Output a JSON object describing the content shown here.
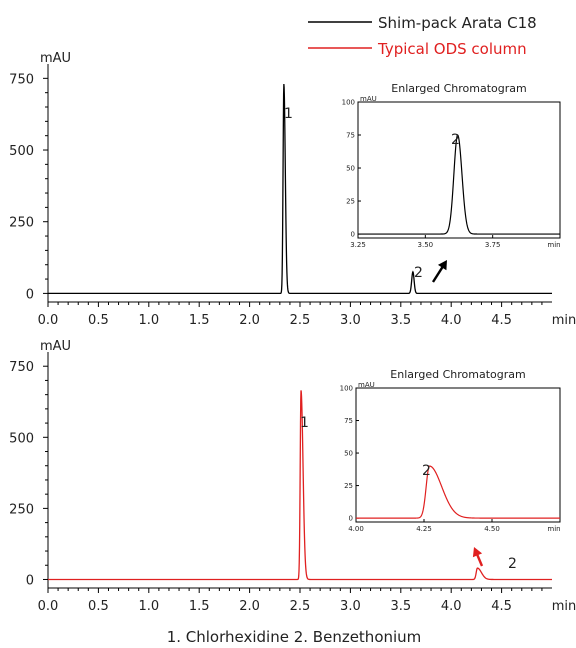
{
  "legend": [
    {
      "label": "Shim-pack Arata C18",
      "color": "#000000"
    },
    {
      "label": "Typical ODS column",
      "color": "#e02020"
    }
  ],
  "caption": "1.  Chlorhexidine   2. Benzethonium",
  "chart_data": [
    {
      "type": "line",
      "series": [
        {
          "name": "Shim-pack Arata C18",
          "color": "#000000"
        }
      ],
      "ylabel": "mAU",
      "xunit": "min",
      "xlim": [
        0,
        5
      ],
      "ylim": [
        -30,
        800
      ],
      "xticks": [
        "0.0",
        "0.5",
        "1.0",
        "1.5",
        "2.0",
        "2.5",
        "3.0",
        "3.5",
        "4.0",
        "4.5"
      ],
      "yticks": [
        "0",
        "250",
        "500",
        "750"
      ],
      "peaks": [
        {
          "label": "1",
          "rt": 2.34,
          "height": 730
        },
        {
          "label": "2",
          "rt": 3.62,
          "height": 75
        }
      ],
      "inset": {
        "title": "Enlarged Chromatogram",
        "ylabel": "mAU",
        "xlim": [
          3.25,
          4.0
        ],
        "ylim": [
          -3,
          100
        ],
        "xticks": [
          "3.25",
          "3.50",
          "3.75"
        ],
        "xunit": "min",
        "yticks": [
          "0",
          "25",
          "50",
          "75",
          "100"
        ],
        "peak": {
          "label": "2",
          "rt": 3.62,
          "height": 75
        }
      }
    },
    {
      "type": "line",
      "series": [
        {
          "name": "Typical ODS column",
          "color": "#e02020"
        }
      ],
      "ylabel": "mAU",
      "xunit": "min",
      "xlim": [
        0,
        5
      ],
      "ylim": [
        -30,
        800
      ],
      "xticks": [
        "0.0",
        "0.5",
        "1.0",
        "1.5",
        "2.0",
        "2.5",
        "3.0",
        "3.5",
        "4.0",
        "4.5"
      ],
      "yticks": [
        "0",
        "250",
        "500",
        "750"
      ],
      "peaks": [
        {
          "label": "1",
          "rt": 2.51,
          "height": 665
        },
        {
          "label": "2",
          "rt": 4.26,
          "height": 40
        }
      ],
      "inset": {
        "title": "Enlarged Chromatogram",
        "ylabel": "mAU",
        "xlim": [
          4.0,
          4.75
        ],
        "ylim": [
          -3,
          100
        ],
        "xticks": [
          "4.00",
          "4.25",
          "4.50"
        ],
        "xunit": "min",
        "yticks": [
          "0",
          "25",
          "50",
          "75",
          "100"
        ],
        "peak": {
          "label": "2",
          "rt": 4.27,
          "height": 40
        }
      }
    }
  ]
}
